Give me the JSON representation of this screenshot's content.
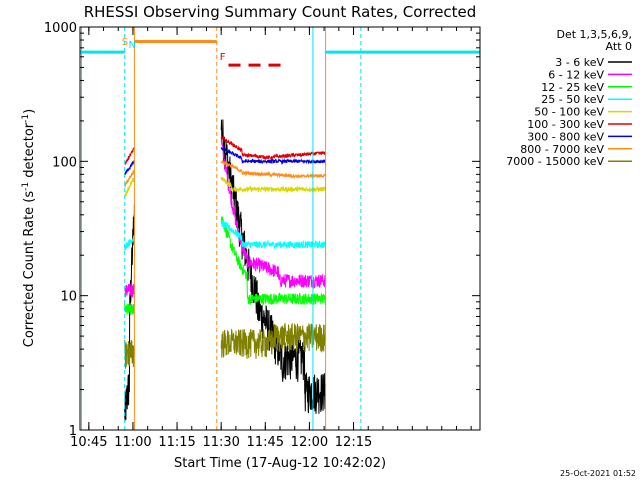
{
  "chart_data": {
    "type": "line",
    "title": "RHESSI Observing Summary Count Rates, Corrected",
    "xlabel": "Start Time (17-Aug-12 10:42:02)",
    "ylabel_main": "Corrected Count Rate (s",
    "ylabel_sup1": "-1",
    "ylabel_mid": " detector",
    "ylabel_sup2": "-1",
    "ylabel_end": ")",
    "y_scale": "log",
    "ylim": [
      1,
      1000
    ],
    "xlim_minutes": [
      42,
      178
    ],
    "x_ticks": [
      {
        "label": "10:45",
        "t": 45
      },
      {
        "label": "11:00",
        "t": 60
      },
      {
        "label": "11:15",
        "t": 75
      },
      {
        "label": "11:30",
        "t": 90
      },
      {
        "label": "11:45",
        "t": 105
      },
      {
        "label": "12:00",
        "t": 120
      },
      {
        "label": "12:15",
        "t": 135
      }
    ],
    "y_ticks": [
      {
        "label": "1",
        "v": 1
      },
      {
        "label": "10",
        "v": 10
      },
      {
        "label": "100",
        "v": 100
      },
      {
        "label": "1000",
        "v": 1000
      }
    ],
    "legend_header": [
      "Det 1,3,5,6,9,",
      "Att 0"
    ],
    "series": [
      {
        "name": "3 - 6 keV",
        "color": "#000000"
      },
      {
        "name": "6 - 12 keV",
        "color": "#ff00ff"
      },
      {
        "name": "12 - 25 keV",
        "color": "#00ff00"
      },
      {
        "name": "25 - 50 keV",
        "color": "#00ffff"
      },
      {
        "name": "50 - 100 keV",
        "color": "#d8d800"
      },
      {
        "name": "100 - 300 keV",
        "color": "#e00000"
      },
      {
        "name": "300 - 800 keV",
        "color": "#0000e0"
      },
      {
        "name": "800 - 7000 keV",
        "color": "#ff8c1a"
      },
      {
        "name": "7000 - 15000 keV",
        "color": "#808000"
      }
    ],
    "annotations": {
      "saa_label": "S",
      "night_label": "N",
      "flare_label": "F",
      "footer_date": "25-Oct-2021 01:52"
    }
  }
}
